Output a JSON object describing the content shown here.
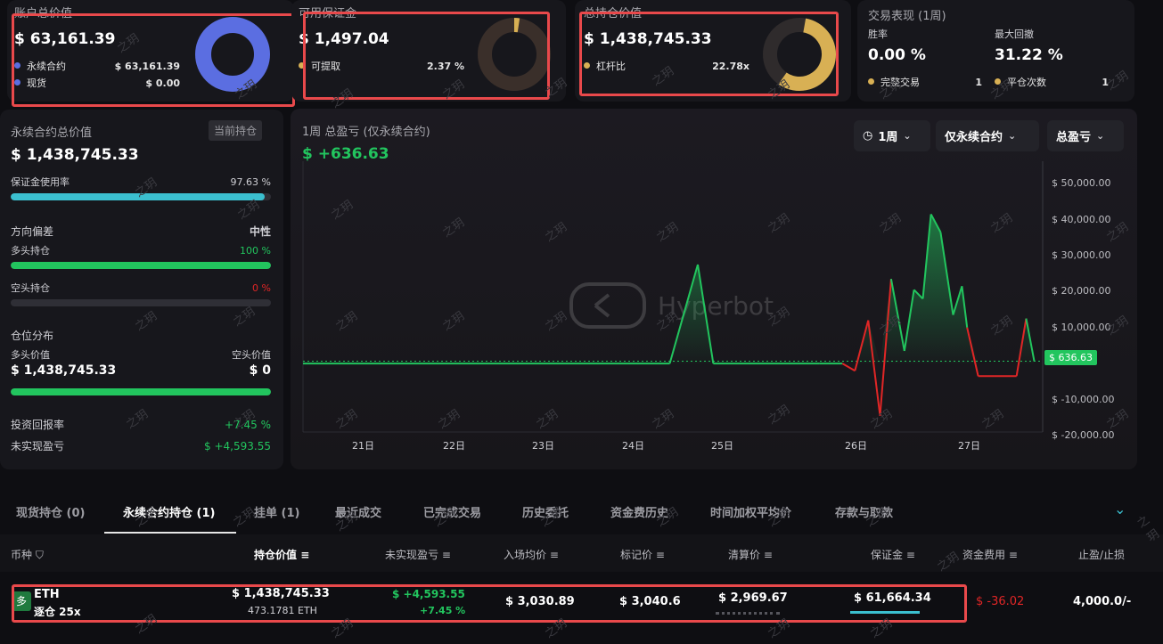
{
  "account": {
    "title": "账户总价值",
    "value": "$ 63,161.39",
    "items": [
      {
        "label": "永续合约",
        "value": "$ 63,161.39",
        "color": "#5b6ee1"
      },
      {
        "label": "现货",
        "value": "$ 0.00",
        "color": "#5b6ee1"
      }
    ]
  },
  "margin": {
    "title": "可用保证金",
    "value": "$ 1,497.04",
    "items": [
      {
        "label": "可提取",
        "value": "2.37 %",
        "color": "#d8b054"
      }
    ]
  },
  "position_value": {
    "title": "总持仓价值",
    "value": "$ 1,438,745.33",
    "items": [
      {
        "label": "杠杆比",
        "value": "22.78x",
        "color": "#d8b054"
      }
    ]
  },
  "performance": {
    "title": "交易表现 (1周)",
    "win_rate_label": "胜率",
    "win_rate": "0.00 %",
    "drawdown_label": "最大回撤",
    "drawdown": "31.22 %",
    "completed_label": "完整交易",
    "completed": "1",
    "close_label": "平仓次数",
    "close": "1"
  },
  "perp": {
    "title": "永续合约总价值",
    "badge": "当前持仓",
    "value": "$ 1,438,745.33",
    "margin_usage_label": "保证金使用率",
    "margin_usage": "97.63 %",
    "margin_usage_frac": 0.9763,
    "bias_label": "方向偏差",
    "bias_value": "中性",
    "long_label": "多头持仓",
    "long_pct": "100 %",
    "long_frac": 1.0,
    "short_label": "空头持仓",
    "short_pct": "0 %",
    "short_frac": 0.0,
    "dist_label": "仓位分布",
    "long_value_label": "多头价值",
    "short_value_label": "空头价值",
    "long_value": "$ 1,438,745.33",
    "short_value": "$ 0",
    "roi_label": "投资回报率",
    "roi": "+7.45 %",
    "upnl_label": "未实现盈亏",
    "upnl": "$ +4,593.55"
  },
  "chart": {
    "title": "1周 总盈亏 (仅永续合约)",
    "pnl": "$ +636.63",
    "period": "1周",
    "scope": "仅永续合约",
    "metric": "总盈亏",
    "watermark": "Hyperbot"
  },
  "chart_data": {
    "type": "line",
    "title": "1周 总盈亏 (仅永续合约)",
    "x_ticks": [
      "21日",
      "22日",
      "23日",
      "24日",
      "25日",
      "26日",
      "27日"
    ],
    "y_ticks": [
      "$ 50,000.00",
      "$ 40,000.00",
      "$ 30,000.00",
      "$ 20,000.00",
      "$ 10,000.00",
      "$ 636.63",
      "$ -10,000.00",
      "$ -20,000.00"
    ],
    "ylim": [
      -21500,
      52500
    ],
    "current": 636.63,
    "x": [
      0,
      0.497,
      0.535,
      0.556,
      0.7,
      0.731,
      0.748,
      0.766,
      0.782,
      0.797,
      0.815,
      0.828,
      0.84,
      0.851,
      0.864,
      0.881,
      0.893,
      0.9,
      0.915,
      0.936,
      0.967,
      0.98,
      0.991
    ],
    "values": [
      0,
      0,
      27500,
      0,
      0,
      0,
      -2000,
      12000,
      -14500,
      23500,
      3500,
      20500,
      18000,
      41500,
      36500,
      13500,
      21500,
      10000,
      -3500,
      -3500,
      -3500,
      12500,
      636.63
    ]
  },
  "tabs": [
    "现货持仓 (0)",
    "永续合约持仓 (1)",
    "挂单 (1)",
    "最近成交",
    "已完成交易",
    "历史委托",
    "资金费历史",
    "时间加权平均价",
    "存款与取款"
  ],
  "table": {
    "headers": [
      "币种",
      "持仓价值",
      "未实现盈亏",
      "入场均价",
      "标记价",
      "清算价",
      "保证金",
      "资金费用",
      "止盈/止损"
    ],
    "row": {
      "badge": "多",
      "coin": "ETH",
      "mode": "逐仓 25x",
      "value": "$ 1,438,745.33",
      "size": "473.1781 ETH",
      "upnl": "$ +4,593.55",
      "upnl_pct": "+7.45 %",
      "entry": "$ 3,030.89",
      "mark": "$ 3,040.6",
      "liq": "$ 2,969.67",
      "margin": "$ 61,664.34",
      "funding": "$ -36.02",
      "tpsl": "4,000.0/-"
    }
  },
  "colors": {
    "green": "#22c55e",
    "red": "#e02626",
    "yellow": "#d8b054",
    "blue": "#5b6ee1",
    "teal": "#3bbfcf"
  },
  "watermark": "之玥"
}
